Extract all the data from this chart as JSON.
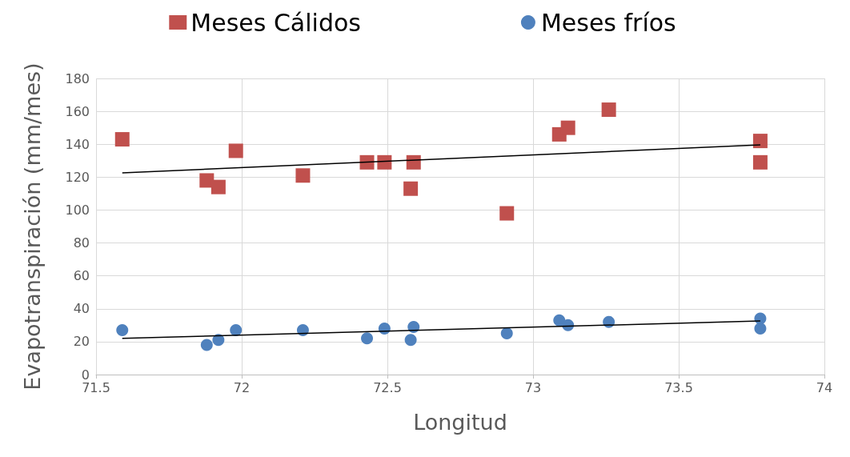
{
  "chart_data": {
    "type": "scatter",
    "xlabel": "Longitud",
    "ylabel": "Evapotranspiración (mm/mes)",
    "xlim": [
      71.5,
      74
    ],
    "xticks": [
      71.5,
      72,
      72.5,
      73,
      73.5,
      74
    ],
    "ylim": [
      0,
      180
    ],
    "yticks": [
      0,
      20,
      40,
      60,
      80,
      100,
      120,
      140,
      160,
      180
    ],
    "grid": true,
    "legend": "top",
    "series": [
      {
        "name": "Meses Cálidos",
        "marker": "square",
        "color": "#c0504d",
        "x": [
          71.59,
          71.88,
          71.92,
          71.98,
          72.21,
          72.43,
          72.49,
          72.58,
          72.59,
          72.91,
          73.09,
          73.12,
          73.26,
          73.78,
          73.78
        ],
        "values": [
          143,
          118,
          114,
          136,
          121,
          129,
          129,
          113,
          129,
          98,
          146,
          150,
          161,
          142,
          129
        ]
      },
      {
        "name": "Meses fríos",
        "marker": "circle",
        "color": "#4f81bd",
        "x": [
          71.59,
          71.88,
          71.92,
          71.98,
          72.21,
          72.43,
          72.49,
          72.58,
          72.59,
          72.91,
          73.09,
          73.12,
          73.26,
          73.78,
          73.78
        ],
        "values": [
          27,
          18,
          21,
          27,
          27,
          22,
          28,
          21,
          29,
          25,
          33,
          30,
          32,
          34,
          28
        ]
      },
      {
        "type": "line",
        "marker": "none",
        "color": "#000000",
        "x": [
          71.59,
          73.78
        ],
        "values": [
          122.6,
          139.6
        ]
      },
      {
        "type": "line",
        "marker": "none",
        "color": "#000000",
        "x": [
          71.59,
          73.78
        ],
        "values": [
          22,
          32.6
        ]
      }
    ]
  }
}
